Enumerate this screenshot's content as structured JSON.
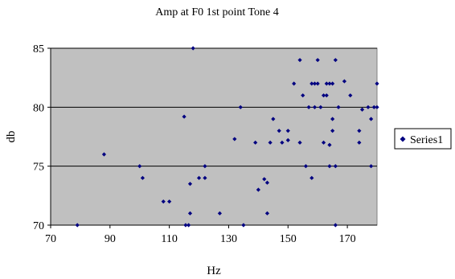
{
  "chart_data": {
    "type": "scatter",
    "title": "Amp at F0 1st point Tone 4",
    "xlabel": "Hz",
    "ylabel": "db",
    "xlim": [
      70,
      180
    ],
    "ylim": [
      70,
      85
    ],
    "x_ticks": [
      70,
      90,
      110,
      130,
      150,
      170
    ],
    "y_ticks": [
      70,
      75,
      80,
      85
    ],
    "grid": "horizontal major gridlines",
    "plot_background": "#c0c0c0",
    "legend": "right",
    "series": [
      {
        "name": "Series1",
        "color": "#000080",
        "marker": "diamond",
        "points": [
          [
            79,
            70
          ],
          [
            88,
            76
          ],
          [
            100,
            75
          ],
          [
            101,
            74
          ],
          [
            108,
            72
          ],
          [
            110,
            72
          ],
          [
            115,
            79.2
          ],
          [
            115.5,
            70
          ],
          [
            116.5,
            70
          ],
          [
            117,
            71
          ],
          [
            117,
            73.5
          ],
          [
            118,
            85
          ],
          [
            120,
            74
          ],
          [
            122,
            74
          ],
          [
            122,
            75
          ],
          [
            127,
            71
          ],
          [
            132,
            77.3
          ],
          [
            134,
            80
          ],
          [
            135,
            70
          ],
          [
            139,
            77
          ],
          [
            140,
            73
          ],
          [
            142,
            73.9
          ],
          [
            143,
            73.6
          ],
          [
            143,
            71
          ],
          [
            144,
            77
          ],
          [
            145,
            79
          ],
          [
            147,
            78
          ],
          [
            148,
            77
          ],
          [
            150,
            77.2
          ],
          [
            150,
            78
          ],
          [
            152,
            82
          ],
          [
            154,
            84
          ],
          [
            154,
            77
          ],
          [
            155,
            81
          ],
          [
            156,
            75
          ],
          [
            157,
            80
          ],
          [
            158,
            82
          ],
          [
            158,
            74
          ],
          [
            159,
            80
          ],
          [
            159,
            82
          ],
          [
            160,
            84
          ],
          [
            160,
            82
          ],
          [
            161,
            80
          ],
          [
            162,
            77
          ],
          [
            162,
            81
          ],
          [
            163,
            81
          ],
          [
            163,
            82
          ],
          [
            164,
            76.8
          ],
          [
            164,
            75
          ],
          [
            164,
            82
          ],
          [
            165,
            82
          ],
          [
            165,
            78
          ],
          [
            165,
            79
          ],
          [
            166,
            84
          ],
          [
            166,
            75
          ],
          [
            166,
            70
          ],
          [
            167,
            80
          ],
          [
            169,
            82.2
          ],
          [
            171,
            81
          ],
          [
            174,
            78
          ],
          [
            174,
            77
          ],
          [
            175,
            79.8
          ],
          [
            177,
            80
          ],
          [
            178,
            79
          ],
          [
            178,
            75
          ],
          [
            179,
            80
          ],
          [
            180,
            80
          ],
          [
            180,
            82
          ]
        ]
      }
    ]
  }
}
